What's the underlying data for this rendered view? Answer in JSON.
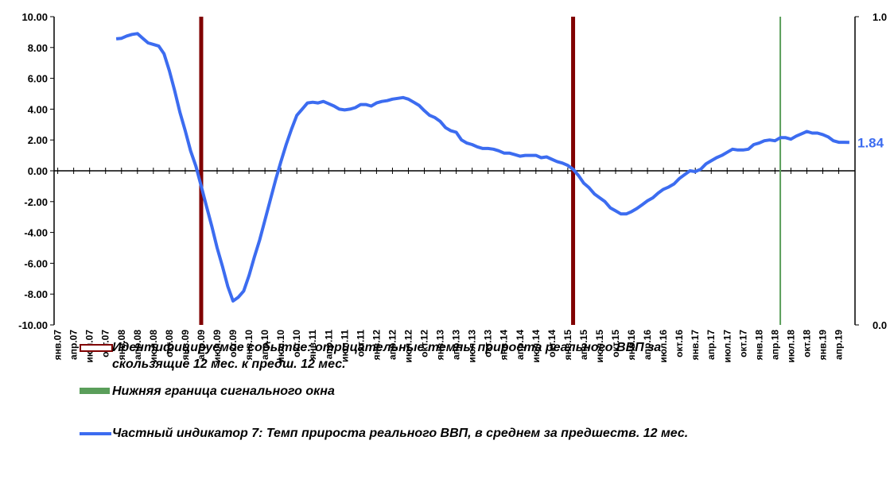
{
  "chart_data": {
    "type": "line",
    "categories": [
      "янв.07",
      null,
      null,
      "апр.07",
      null,
      null,
      "июл.07",
      null,
      null,
      "окт.07",
      null,
      null,
      "янв.08",
      null,
      null,
      "апр.08",
      null,
      null,
      "июл.08",
      null,
      null,
      "окт.08",
      null,
      null,
      "янв.09",
      null,
      null,
      "апр.09",
      null,
      null,
      "июл.09",
      null,
      null,
      "окт.09",
      null,
      null,
      "янв.10",
      null,
      null,
      "апр.10",
      null,
      null,
      "июл.10",
      null,
      null,
      "окт.10",
      null,
      null,
      "янв.11",
      null,
      null,
      "апр.11",
      null,
      null,
      "июл.11",
      null,
      null,
      "окт.11",
      null,
      null,
      "янв.12",
      null,
      null,
      "апр.12",
      null,
      null,
      "июл.12",
      null,
      null,
      "окт.12",
      null,
      null,
      "янв.13",
      null,
      null,
      "апр.13",
      null,
      null,
      "июл.13",
      null,
      null,
      "окт.13",
      null,
      null,
      "янв.14",
      null,
      null,
      "апр.14",
      null,
      null,
      "июл.14",
      null,
      null,
      "окт.14",
      null,
      null,
      "янв.15",
      null,
      null,
      "апр.15",
      null,
      null,
      "июл.15",
      null,
      null,
      "окт.15",
      null,
      null,
      "янв.16",
      null,
      null,
      "апр.16",
      null,
      null,
      "июл.16",
      null,
      null,
      "окт.16",
      null,
      null,
      "янв.17",
      null,
      null,
      "апр.17",
      null,
      null,
      "июл.17",
      null,
      null,
      "окт.17",
      null,
      null,
      "янв.18",
      null,
      null,
      "апр.18",
      null,
      null,
      "июл.18",
      null,
      null,
      "окт.18",
      null,
      null,
      "янв.19",
      null,
      null,
      "апр.19",
      null,
      null
    ],
    "series": [
      {
        "name": "Идентифицируемое событие: отрицательные темпы прироста реального ВВП за скользящие 12 мес. к предш. 12 мес.",
        "color": "#800000",
        "type": "bar",
        "axis": "y2",
        "values": [
          null,
          null,
          null,
          null,
          null,
          null,
          null,
          null,
          null,
          null,
          null,
          null,
          null,
          null,
          null,
          null,
          null,
          null,
          null,
          null,
          null,
          null,
          null,
          null,
          null,
          null,
          null,
          1,
          null,
          null,
          null,
          null,
          null,
          null,
          null,
          null,
          null,
          null,
          null,
          null,
          null,
          null,
          null,
          null,
          null,
          null,
          null,
          null,
          null,
          null,
          null,
          null,
          null,
          null,
          null,
          null,
          null,
          null,
          null,
          null,
          null,
          null,
          null,
          null,
          null,
          null,
          null,
          null,
          null,
          null,
          null,
          null,
          null,
          null,
          null,
          null,
          null,
          null,
          null,
          null,
          null,
          null,
          null,
          null,
          null,
          null,
          null,
          null,
          null,
          null,
          null,
          null,
          null,
          null,
          null,
          null,
          null,
          1,
          null,
          null,
          null,
          null,
          null,
          null,
          null,
          null,
          null,
          null,
          null,
          null,
          null,
          null,
          null,
          null,
          null,
          null,
          null,
          null,
          null,
          null,
          null,
          null,
          null,
          null,
          null,
          null,
          null,
          null,
          null,
          null,
          null,
          null,
          null,
          null,
          null,
          null,
          null,
          null,
          null,
          null,
          null,
          null,
          null,
          null,
          null,
          null,
          null,
          null,
          null,
          null
        ]
      },
      {
        "name": "Нижняя граница сигнального окна",
        "color": "#5a9e5a",
        "type": "bar",
        "axis": "y2",
        "values": [
          null,
          null,
          null,
          null,
          null,
          null,
          null,
          null,
          null,
          null,
          null,
          null,
          null,
          null,
          null,
          null,
          null,
          null,
          null,
          null,
          null,
          null,
          null,
          null,
          null,
          null,
          null,
          null,
          null,
          null,
          null,
          null,
          null,
          null,
          null,
          null,
          null,
          null,
          null,
          null,
          null,
          null,
          null,
          null,
          null,
          null,
          null,
          null,
          null,
          null,
          null,
          null,
          null,
          null,
          null,
          null,
          null,
          null,
          null,
          null,
          null,
          null,
          null,
          null,
          null,
          null,
          null,
          null,
          null,
          null,
          null,
          null,
          null,
          null,
          null,
          null,
          null,
          null,
          null,
          null,
          null,
          null,
          null,
          null,
          null,
          null,
          null,
          null,
          null,
          null,
          null,
          null,
          null,
          null,
          null,
          null,
          null,
          null,
          null,
          null,
          null,
          null,
          null,
          null,
          null,
          null,
          null,
          null,
          null,
          null,
          null,
          null,
          null,
          null,
          null,
          null,
          null,
          null,
          null,
          null,
          null,
          null,
          null,
          null,
          null,
          null,
          null,
          null,
          null,
          null,
          null,
          null,
          null,
          null,
          null,
          null,
          1,
          null,
          null,
          null,
          null,
          null,
          null,
          null,
          null,
          null,
          null,
          null,
          null,
          null
        ]
      },
      {
        "name": "Частный индикатор 7: Темп прироста реального ВВП, в среднем за предшеств. 12 мес.",
        "color": "#3c6cf0",
        "type": "line",
        "values": [
          null,
          null,
          null,
          null,
          null,
          null,
          null,
          null,
          null,
          null,
          null,
          8.56,
          8.6,
          8.75,
          8.85,
          8.9,
          8.6,
          8.3,
          8.2,
          8.1,
          7.6,
          6.5,
          5.2,
          3.8,
          2.6,
          1.3,
          0.3,
          -1.0,
          -2.3,
          -3.6,
          -5.0,
          -6.2,
          -7.5,
          -8.45,
          -8.2,
          -7.8,
          -6.8,
          -5.6,
          -4.5,
          -3.2,
          -1.9,
          -0.6,
          0.6,
          1.7,
          2.7,
          3.6,
          4.0,
          4.4,
          4.45,
          4.4,
          4.5,
          4.35,
          4.2,
          4.0,
          3.95,
          4.0,
          4.1,
          4.3,
          4.3,
          4.2,
          4.4,
          4.5,
          4.55,
          4.65,
          4.7,
          4.75,
          4.65,
          4.45,
          4.25,
          3.9,
          3.6,
          3.45,
          3.2,
          2.8,
          2.6,
          2.5,
          2.0,
          1.8,
          1.7,
          1.55,
          1.45,
          1.45,
          1.4,
          1.3,
          1.15,
          1.15,
          1.05,
          0.95,
          1.0,
          1.0,
          1.0,
          0.85,
          0.9,
          0.75,
          0.6,
          0.5,
          0.35,
          0.1,
          -0.3,
          -0.8,
          -1.1,
          -1.5,
          -1.75,
          -2.0,
          -2.4,
          -2.6,
          -2.8,
          -2.8,
          -2.65,
          -2.45,
          -2.2,
          -1.95,
          -1.75,
          -1.45,
          -1.2,
          -1.05,
          -0.85,
          -0.5,
          -0.25,
          0.0,
          -0.05,
          0.1,
          0.45,
          0.65,
          0.85,
          1.0,
          1.2,
          1.4,
          1.35,
          1.35,
          1.4,
          1.7,
          1.8,
          1.95,
          2.0,
          1.95,
          2.15,
          2.15,
          2.05,
          2.25,
          2.4,
          2.55,
          2.45,
          2.45,
          2.35,
          2.2,
          1.95,
          1.85,
          1.85,
          1.84
        ]
      }
    ],
    "ylim": [
      -10,
      10
    ],
    "yticks": [
      {
        "value": -10,
        "label": "-10.00"
      },
      {
        "value": -8,
        "label": "-8.00"
      },
      {
        "value": -6,
        "label": "-6.00"
      },
      {
        "value": -4,
        "label": "-4.00"
      },
      {
        "value": -2,
        "label": "-2.00"
      },
      {
        "value": 0,
        "label": "0.00"
      },
      {
        "value": 2,
        "label": "2.00"
      },
      {
        "value": 4,
        "label": "4.00"
      },
      {
        "value": 6,
        "label": "6.00"
      },
      {
        "value": 8,
        "label": "8.00"
      },
      {
        "value": 10,
        "label": "10.00"
      }
    ],
    "y2lim": [
      0,
      1
    ],
    "y2ticks": [
      {
        "value": 0,
        "label": "0.0"
      },
      {
        "value": 1,
        "label": "1.0"
      }
    ],
    "grid": false,
    "legend": "bottom"
  }
}
